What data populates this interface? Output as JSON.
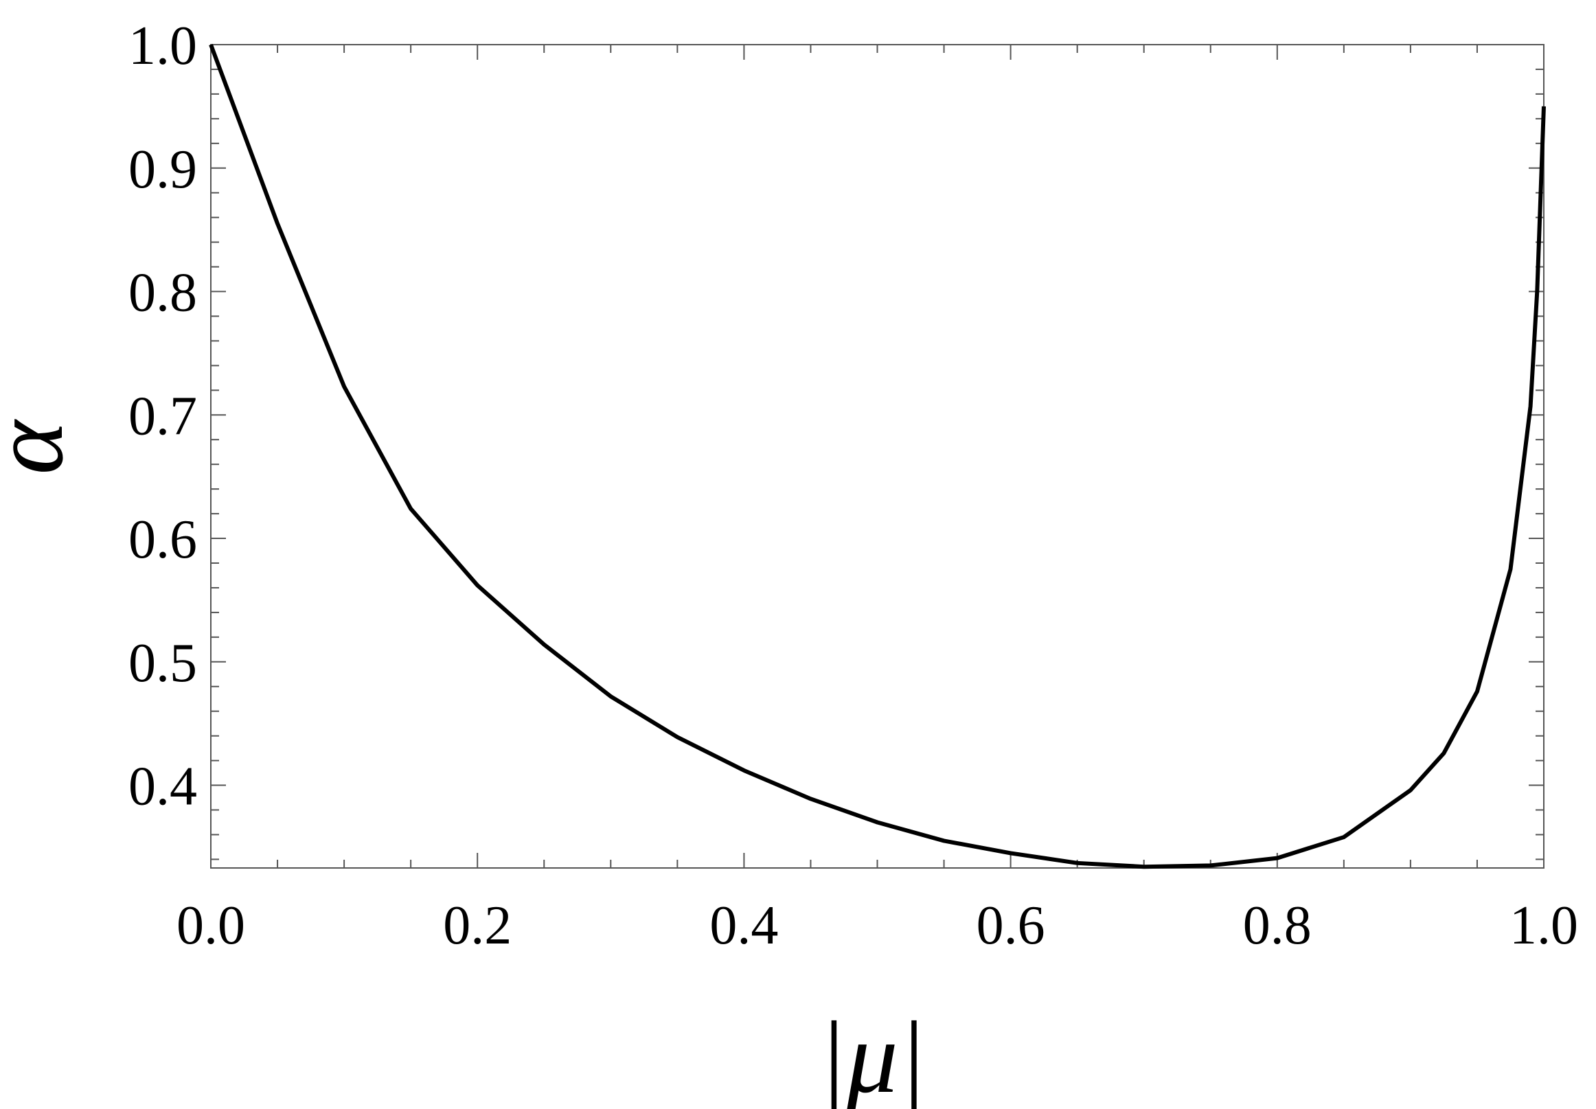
{
  "chart_data": {
    "type": "line",
    "x_label": "|μ|",
    "y_label": "α",
    "x": [
      0,
      0.05,
      0.1,
      0.15,
      0.2,
      0.25,
      0.3,
      0.35,
      0.4,
      0.45,
      0.5,
      0.55,
      0.6,
      0.65,
      0.7,
      0.75,
      0.8,
      0.85,
      0.9,
      0.925,
      0.95,
      0.975,
      0.99,
      0.995,
      1.0
    ],
    "series": [
      {
        "color": "#000000",
        "values": [
          1.0,
          0.855,
          0.723,
          0.624,
          0.562,
          0.514,
          0.472,
          0.439,
          0.412,
          0.389,
          0.37,
          0.355,
          0.345,
          0.337,
          0.334,
          0.335,
          0.341,
          0.358,
          0.396,
          0.426,
          0.476,
          0.575,
          0.707,
          0.8,
          0.95
        ]
      }
    ],
    "xlim": [
      0,
      1
    ],
    "ylim": [
      0.333,
      1.0
    ],
    "xticks": [
      {
        "value": 0,
        "label": "0.0"
      },
      0.2,
      0.4,
      0.6,
      0.8,
      {
        "value": 1,
        "label": "1.0"
      }
    ],
    "yticks": [
      0.4,
      0.5,
      0.6,
      0.7,
      0.8,
      0.9,
      {
        "value": 1,
        "label": "1.0"
      }
    ],
    "xminorticks": [
      0.05,
      0.1,
      0.15,
      0.25,
      0.3,
      0.35,
      0.45,
      0.5,
      0.55,
      0.65,
      0.7,
      0.75,
      0.85,
      0.9,
      0.95
    ],
    "yminorticks": [
      0.34,
      0.36,
      0.38,
      0.42,
      0.44,
      0.46,
      0.48,
      0.52,
      0.54,
      0.56,
      0.58,
      0.62,
      0.64,
      0.66,
      0.68,
      0.72,
      0.74,
      0.76,
      0.78,
      0.82,
      0.84,
      0.86,
      0.88,
      0.92,
      0.94,
      0.96,
      0.98
    ],
    "grid": false
  }
}
